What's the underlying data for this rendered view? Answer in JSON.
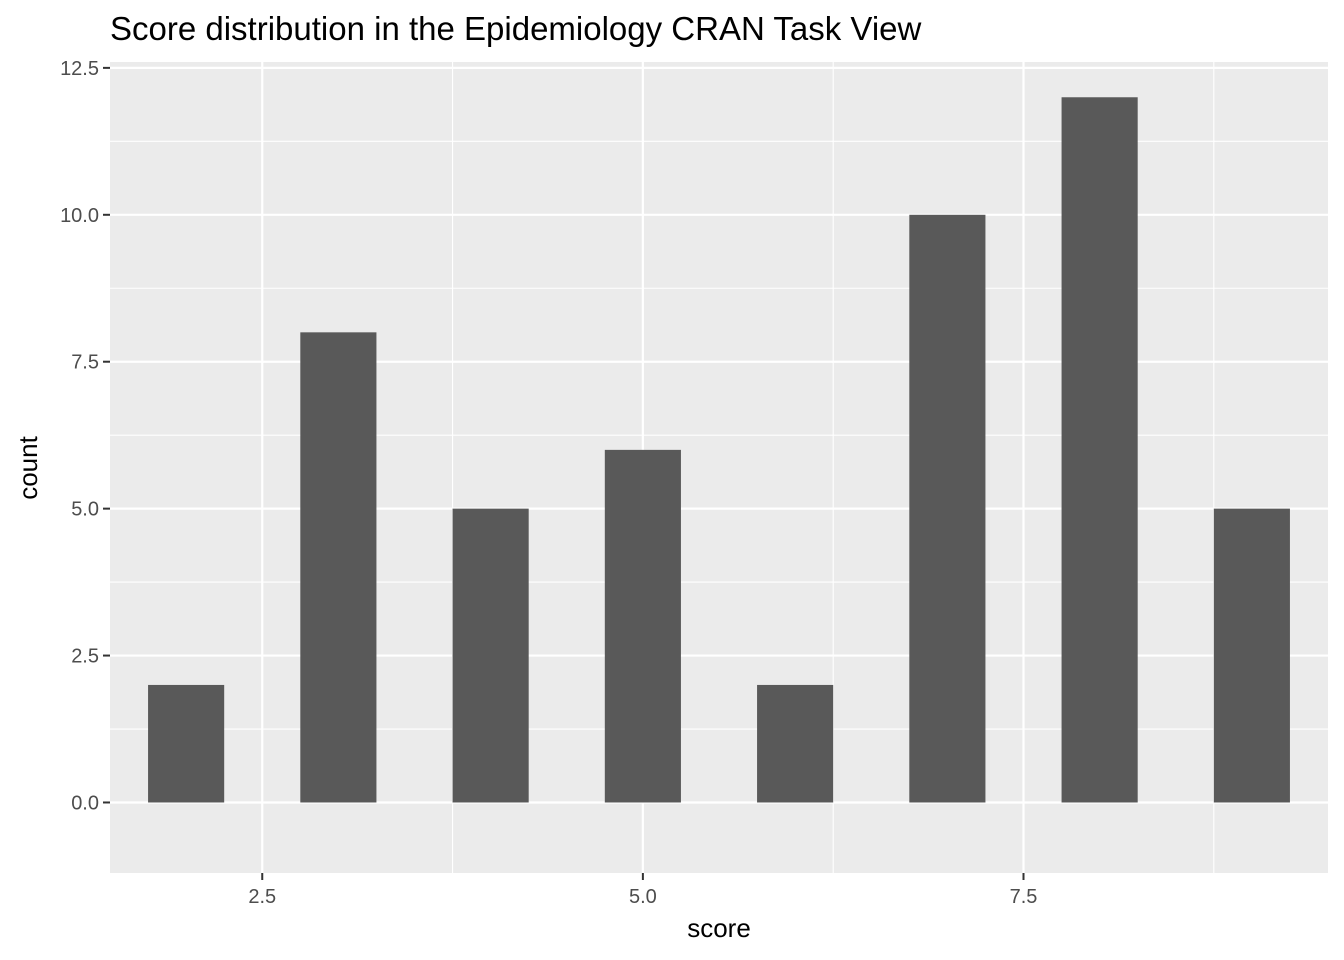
{
  "chart_data": {
    "type": "bar",
    "title": "Score distribution in the Epidemiology CRAN Task View",
    "xlabel": "score",
    "ylabel": "count",
    "x": [
      2,
      3,
      4,
      5,
      6,
      7,
      8,
      9
    ],
    "values": [
      2,
      8,
      5,
      6,
      2,
      10,
      12,
      5
    ],
    "bar_width": 0.5,
    "xlim": [
      1.5,
      9.5
    ],
    "ylim": [
      -1.2,
      12.6
    ],
    "x_ticks": [
      2.5,
      5.0,
      7.5
    ],
    "x_tick_labels": [
      "2.5",
      "5.0",
      "7.5"
    ],
    "y_ticks": [
      0,
      2.5,
      5,
      7.5,
      10,
      12.5
    ],
    "y_tick_labels": [
      "0.0",
      "2.5",
      "5.0",
      "7.5",
      "10.0",
      "12.5"
    ],
    "grid": true,
    "colors": {
      "bar": "#595959",
      "panel": "#ebebeb",
      "grid": "#ffffff",
      "tick": "#333333"
    }
  }
}
